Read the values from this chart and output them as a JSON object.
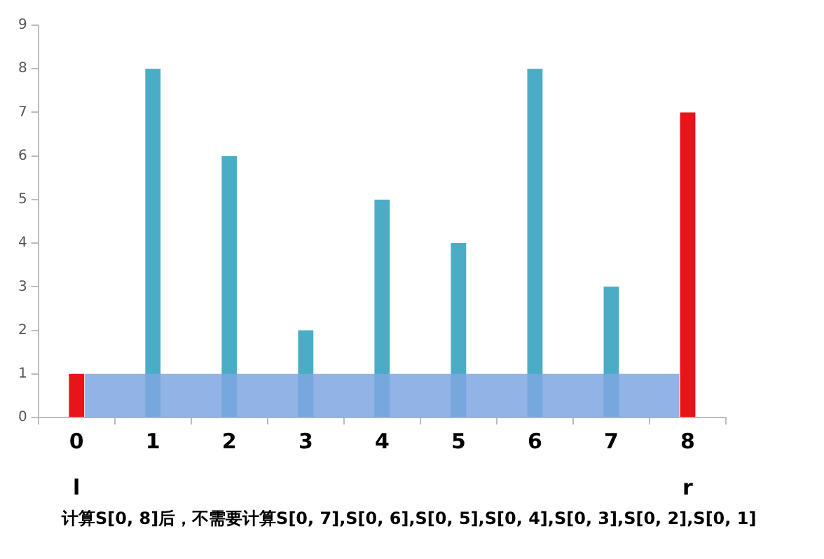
{
  "chart_data": {
    "type": "bar",
    "categories": [
      "0",
      "1",
      "2",
      "3",
      "4",
      "5",
      "6",
      "7",
      "8"
    ],
    "values": [
      1,
      8,
      6,
      2,
      5,
      4,
      8,
      3,
      7
    ],
    "colors": [
      "#e8141a",
      "#4bacc6",
      "#4bacc6",
      "#4bacc6",
      "#4bacc6",
      "#4bacc6",
      "#4bacc6",
      "#4bacc6",
      "#e8141a"
    ],
    "ylim": [
      0,
      9
    ],
    "yticks": [
      0,
      1,
      2,
      3,
      4,
      5,
      6,
      7,
      8,
      9
    ],
    "grid": false,
    "legend": false,
    "bands": [
      {
        "axis": "y",
        "from": 0,
        "to": 1,
        "color": "#7ea6e0"
      }
    ],
    "annotations": [
      "l",
      "r",
      "计算S[0, 8]后，不需要计算S[0, 7],S[0, 6],S[0, 5],S[0, 4],S[0, 3],S[0, 2],S[0, 1]"
    ]
  }
}
